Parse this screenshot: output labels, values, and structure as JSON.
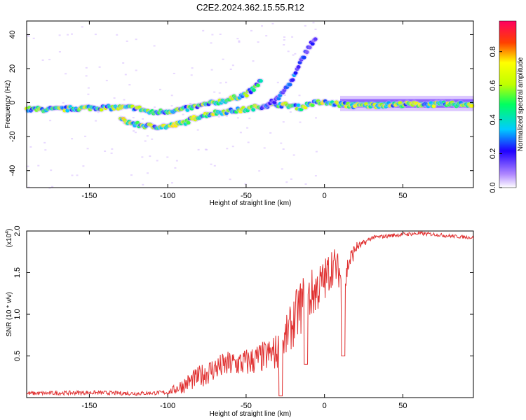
{
  "title": "C2E2.2024.362.15.55.R12",
  "colors": {
    "snr_line": "#e03030",
    "axis": "#000000",
    "background": "#ffffff"
  },
  "chart_data": [
    {
      "type": "heatmap",
      "xlabel": "Height of straight line (km)",
      "ylabel": "Frequency (Hz)",
      "xlim": [
        -190,
        95
      ],
      "ylim": [
        -50,
        48
      ],
      "xticks": [
        -150,
        -100,
        -50,
        0,
        50
      ],
      "yticks": [
        -40,
        -20,
        0,
        20,
        40
      ],
      "colorbar": {
        "label": "Normalized spectral amplitude",
        "range": [
          0,
          0.98
        ],
        "ticks": [
          0.0,
          0.2,
          0.4,
          0.6,
          0.8
        ]
      },
      "ridges": [
        {
          "name": "",
          "points": [
            [
              -190,
              -4
            ],
            [
              -170,
              -4
            ],
            [
              -150,
              -3
            ],
            [
              -140,
              -3
            ],
            [
              -130,
              -3
            ],
            [
              -120,
              -3
            ],
            [
              -110,
              -6
            ],
            [
              -100,
              -5
            ],
            [
              -90,
              -4
            ],
            [
              -80,
              -2
            ],
            [
              -70,
              0
            ],
            [
              -60,
              2
            ],
            [
              -50,
              5
            ],
            [
              -45,
              8
            ],
            [
              -40,
              14
            ]
          ],
          "amplitude": 0.55
        },
        {
          "name": "",
          "points": [
            [
              -130,
              -10
            ],
            [
              -120,
              -13
            ],
            [
              -110,
              -14
            ],
            [
              -100,
              -14
            ],
            [
              -90,
              -12
            ],
            [
              -80,
              -8
            ],
            [
              -70,
              -6
            ],
            [
              -60,
              -5
            ],
            [
              -50,
              -4
            ],
            [
              -40,
              -2
            ],
            [
              -30,
              -1
            ],
            [
              -20,
              -2
            ],
            [
              -15,
              -3
            ],
            [
              -10,
              -1
            ],
            [
              -5,
              0
            ],
            [
              0,
              0
            ],
            [
              10,
              -1
            ],
            [
              20,
              -2
            ],
            [
              50,
              -1
            ],
            [
              95,
              -1
            ]
          ],
          "amplitude": 0.6
        },
        {
          "name": "",
          "points": [
            [
              -40,
              -3
            ],
            [
              -30,
              2
            ],
            [
              -25,
              8
            ],
            [
              -20,
              14
            ],
            [
              -15,
              24
            ],
            [
              -10,
              33
            ],
            [
              -5,
              38
            ]
          ],
          "amplitude": 0.25
        }
      ]
    },
    {
      "type": "line",
      "xlabel": "Height of straight line (km)",
      "ylabel": "SNR (10 * v/v)",
      "multiplier": "(x10",
      "multiplier_exp": "4",
      "multiplier_close": ")",
      "xlim": [
        -190,
        95
      ],
      "ylim": [
        0,
        2.0
      ],
      "xticks": [
        -150,
        -100,
        -50,
        0,
        50
      ],
      "yticks": [
        0.5,
        1.0,
        1.5,
        2.0
      ],
      "ytick_labels": [
        "0.5",
        "1.0",
        "1.5",
        "2.0"
      ],
      "series": [
        {
          "envelope": [
            [
              -190,
              0.05
            ],
            [
              -150,
              0.06
            ],
            [
              -120,
              0.05
            ],
            [
              -100,
              0.06
            ],
            [
              -90,
              0.15
            ],
            [
              -80,
              0.25
            ],
            [
              -70,
              0.35
            ],
            [
              -60,
              0.4
            ],
            [
              -50,
              0.42
            ],
            [
              -40,
              0.48
            ],
            [
              -30,
              0.55
            ],
            [
              -25,
              0.7
            ],
            [
              -20,
              0.9
            ],
            [
              -15,
              1.1
            ],
            [
              -10,
              1.2
            ],
            [
              -5,
              1.3
            ],
            [
              0,
              1.4
            ],
            [
              5,
              1.6
            ],
            [
              10,
              1.5
            ],
            [
              12,
              1.2
            ],
            [
              15,
              1.6
            ],
            [
              20,
              1.8
            ],
            [
              25,
              1.85
            ],
            [
              30,
              1.92
            ],
            [
              40,
              1.94
            ],
            [
              50,
              1.96
            ],
            [
              60,
              1.97
            ],
            [
              70,
              1.96
            ],
            [
              80,
              1.94
            ],
            [
              95,
              1.92
            ]
          ],
          "noise": [
            [
              -190,
              0.05
            ],
            [
              -150,
              0.05
            ],
            [
              -100,
              0.05
            ],
            [
              -90,
              0.2
            ],
            [
              -75,
              0.3
            ],
            [
              -50,
              0.35
            ],
            [
              -35,
              0.4
            ],
            [
              -25,
              0.5
            ],
            [
              -15,
              0.7
            ],
            [
              -5,
              0.6
            ],
            [
              5,
              0.5
            ],
            [
              15,
              0.3
            ],
            [
              22,
              0.1
            ],
            [
              30,
              0.05
            ],
            [
              95,
              0.04
            ]
          ],
          "dips": [
            [
              12,
              0.5
            ],
            [
              -28,
              0.02
            ],
            [
              -12,
              0.4
            ]
          ]
        }
      ]
    }
  ]
}
